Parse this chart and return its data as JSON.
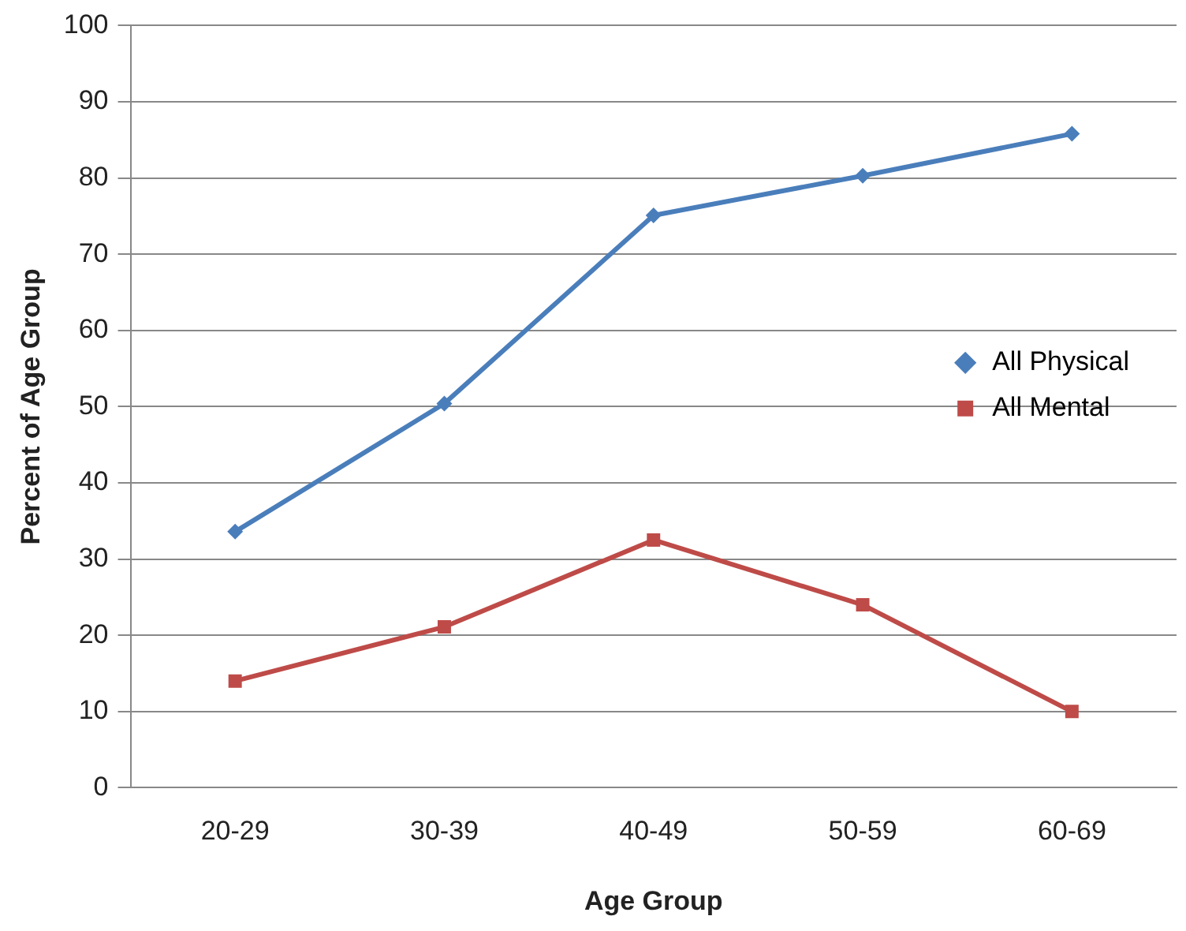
{
  "chart_data": {
    "type": "line",
    "xlabel": "Age Group",
    "ylabel": "Percent of Age Group",
    "categories": [
      "20-29",
      "30-39",
      "40-49",
      "50-59",
      "60-69"
    ],
    "series": [
      {
        "name": "All Physical",
        "color": "#4a7ebb",
        "marker": "diamond",
        "values": [
          33.6,
          50.4,
          75.1,
          80.3,
          85.8
        ]
      },
      {
        "name": "All Mental",
        "color": "#be4b48",
        "marker": "square",
        "values": [
          14,
          21.1,
          32.5,
          24,
          10
        ]
      }
    ],
    "ylim": [
      0,
      100
    ],
    "yticks": [
      0,
      10,
      20,
      30,
      40,
      50,
      60,
      70,
      80,
      90,
      100
    ],
    "grid": "y",
    "legend": "right"
  }
}
